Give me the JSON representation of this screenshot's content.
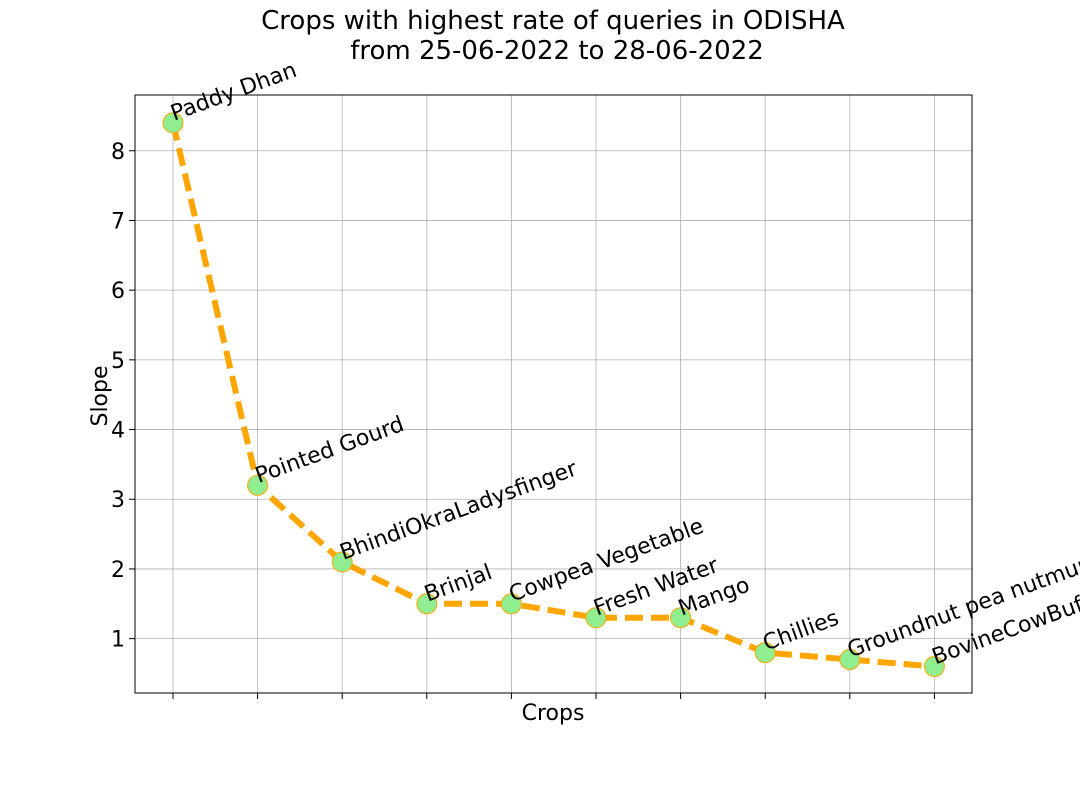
{
  "chart_data": {
    "type": "line",
    "title_line1": "Crops with highest rate of queries in ODISHA",
    "title_line2": "from 25-06-2022 to 28-06-2022",
    "xlabel": "Crops",
    "ylabel": "Slope",
    "categories": [
      "Paddy Dhan",
      "Pointed Gourd",
      "BhindiOkraLadysfinger",
      "Brinjal",
      "Cowpea Vegetable",
      "Fresh Water",
      "Mango",
      "Chillies",
      "Groundnut pea nutmum",
      "BovineCowBuffalo"
    ],
    "values": [
      8.4,
      3.2,
      2.1,
      1.5,
      1.5,
      1.3,
      1.3,
      0.8,
      0.7,
      0.6
    ],
    "ylim": [
      0.22,
      8.8
    ],
    "yticks": [
      1,
      2,
      3,
      4,
      5,
      6,
      7,
      8
    ],
    "grid": true,
    "line_color": "#ffa500",
    "line_style": "dashed",
    "marker_color": "#90ee90",
    "marker_edge_color": "#ffa500"
  }
}
